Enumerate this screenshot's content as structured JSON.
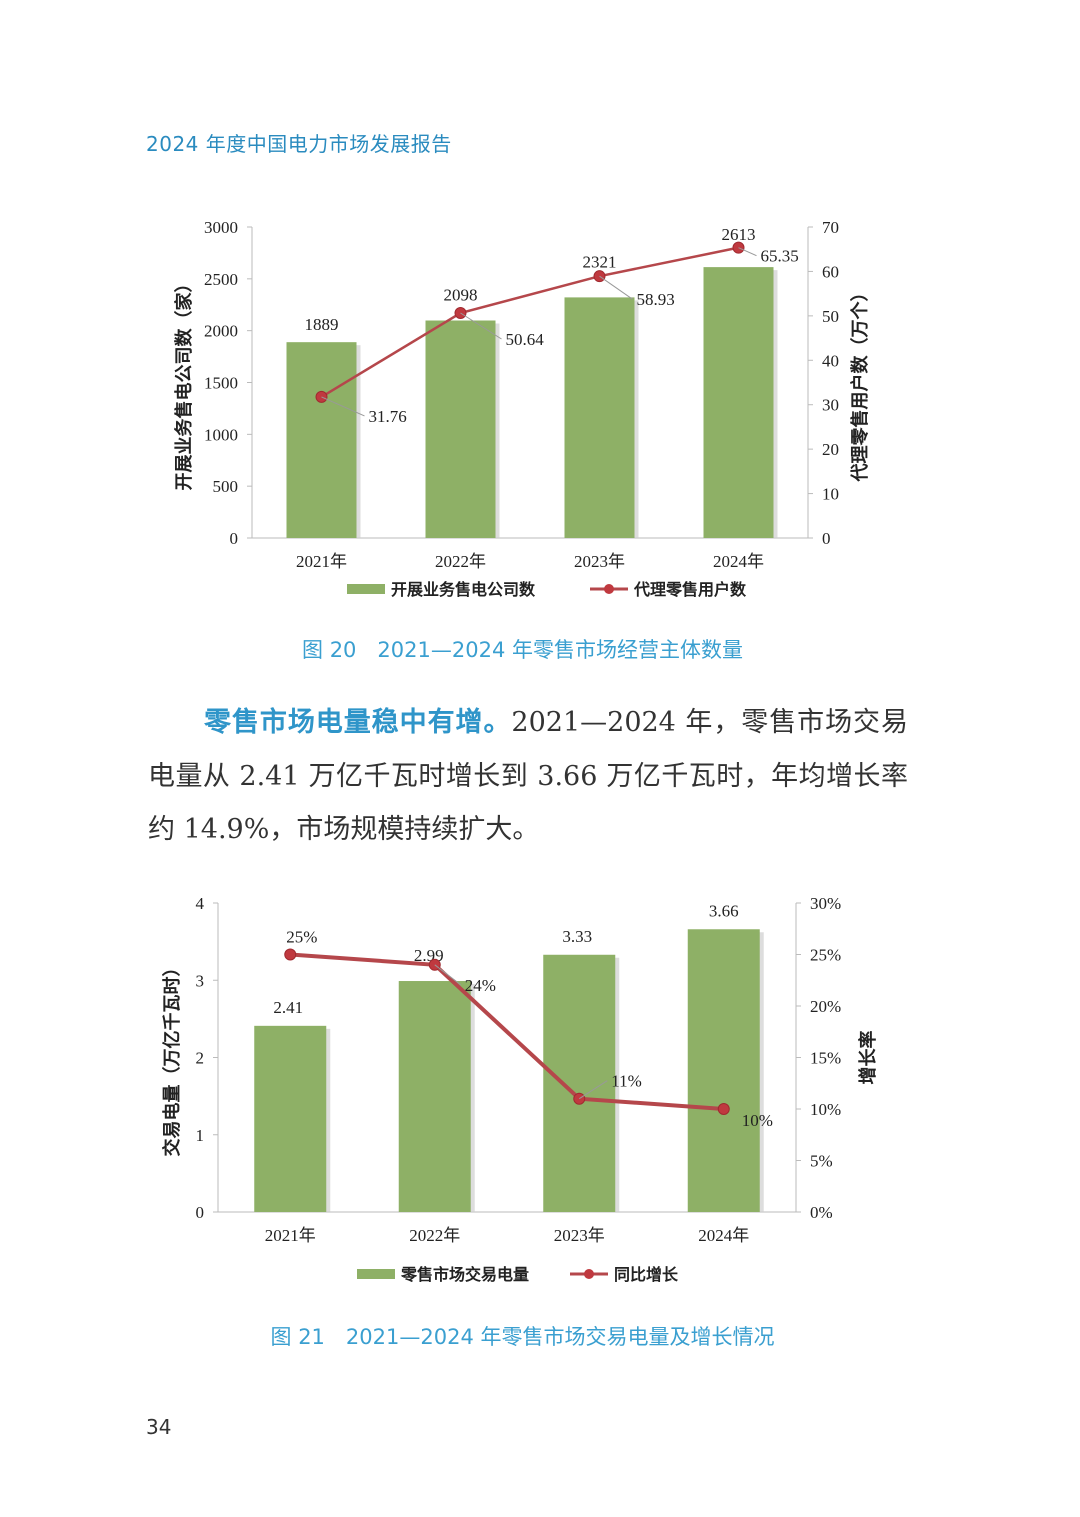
{
  "header": {
    "title": "2024 年度中国电力市场发展报告"
  },
  "figure20": {
    "caption": "图 20　2021—2024 年零售市场经营主体数量"
  },
  "paragraph": {
    "lead": "零售市场电量稳中有增。",
    "body": "2021—2024 年，零售市场交易电量从 2.41 万亿千瓦时增长到 3.66 万亿千瓦时，年均增长率约 14.9%，市场规模持续扩大。"
  },
  "figure21": {
    "caption": "图 21　2021—2024 年零售市场交易电量及增长情况"
  },
  "page_number": "34",
  "colors": {
    "bar": "#8eb066",
    "line": "#b5474b",
    "accent_text": "#2f95c9"
  },
  "chart_data": [
    {
      "type": "bar+line",
      "categories": [
        "2021年",
        "2022年",
        "2023年",
        "2024年"
      ],
      "ylabel": "开展业务售电公司数（家）",
      "y2label": "代理零售用户数（万个）",
      "ylim": [
        0,
        3000
      ],
      "yticks": [
        "0",
        "500",
        "1000",
        "1500",
        "2000",
        "2500",
        "3000"
      ],
      "y2lim": [
        0,
        70
      ],
      "y2ticks": [
        "0",
        "10",
        "20",
        "30",
        "40",
        "50",
        "60",
        "70"
      ],
      "grid": false,
      "legend_position": "bottom",
      "series": [
        {
          "name": "开展业务售电公司数",
          "type": "bar",
          "axis": "left",
          "values": [
            1889,
            2098,
            2321,
            2613
          ],
          "labels": [
            "1889",
            "2098",
            "2321",
            "2613"
          ]
        },
        {
          "name": "代理零售用户数",
          "type": "line",
          "axis": "right",
          "values": [
            31.76,
            50.64,
            58.93,
            65.35
          ],
          "labels": [
            "31.76",
            "50.64",
            "58.93",
            "65.35"
          ]
        }
      ]
    },
    {
      "type": "bar+line",
      "categories": [
        "2021年",
        "2022年",
        "2023年",
        "2024年"
      ],
      "ylabel": "交易电量（万亿千瓦时）",
      "y2label": "增长率",
      "ylim": [
        0,
        4
      ],
      "yticks": [
        "0",
        "1",
        "2",
        "3",
        "4"
      ],
      "y2lim": [
        0,
        30
      ],
      "y2ticks": [
        "0%",
        "5%",
        "10%",
        "15%",
        "20%",
        "25%",
        "30%"
      ],
      "grid": false,
      "legend_position": "bottom",
      "series": [
        {
          "name": "零售市场交易电量",
          "type": "bar",
          "axis": "left",
          "values": [
            2.41,
            2.99,
            3.33,
            3.66
          ],
          "labels": [
            "2.41",
            "2.99",
            "3.33",
            "3.66"
          ]
        },
        {
          "name": "同比增长",
          "type": "line",
          "axis": "right",
          "values": [
            25,
            24,
            11,
            10
          ],
          "labels": [
            "25%",
            "24%",
            "11%",
            "10%"
          ]
        }
      ]
    }
  ]
}
